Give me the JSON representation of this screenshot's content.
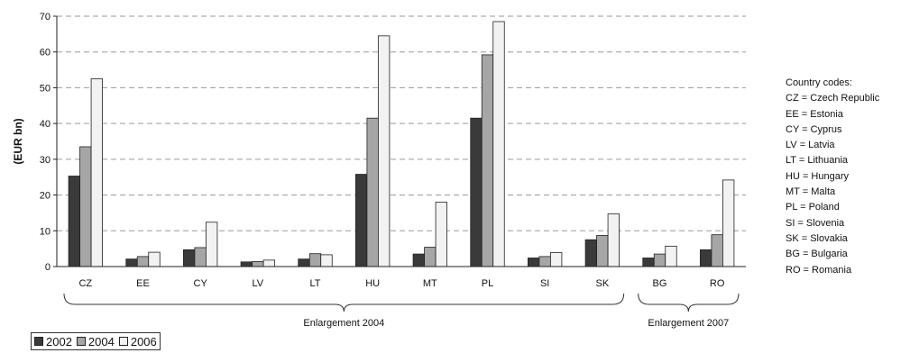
{
  "chart_data": {
    "type": "bar",
    "title": "",
    "ylabel": "(EUR bn)",
    "xlabel": "",
    "ylim": [
      0,
      70
    ],
    "yticks": [
      0,
      10,
      20,
      30,
      40,
      50,
      60,
      70
    ],
    "grid": "horizontal dashed",
    "categories": [
      "CZ",
      "EE",
      "CY",
      "LV",
      "LT",
      "HU",
      "MT",
      "PL",
      "SI",
      "SK",
      "BG",
      "RO"
    ],
    "series": [
      {
        "name": "2002",
        "color": "#3a3a3a",
        "values": [
          25.3,
          2.1,
          4.7,
          1.3,
          2.1,
          25.8,
          3.5,
          41.5,
          2.4,
          7.5,
          2.4,
          4.7
        ]
      },
      {
        "name": "2004",
        "color": "#a6a6a6",
        "values": [
          33.5,
          2.8,
          5.3,
          1.4,
          3.6,
          41.5,
          5.4,
          59.2,
          2.8,
          8.7,
          3.5,
          8.9
        ]
      },
      {
        "name": "2006",
        "color": "#f2f2f2",
        "values": [
          52.5,
          4.0,
          12.4,
          1.8,
          3.3,
          64.5,
          18.0,
          68.5,
          3.9,
          14.7,
          5.7,
          24.2
        ]
      }
    ],
    "groups": [
      {
        "label": "Enlargement 2004",
        "start": 0,
        "end": 9
      },
      {
        "label": "Enlargement 2007",
        "start": 10,
        "end": 11
      }
    ],
    "legend_position": "bottom-left"
  },
  "legend": {
    "items": [
      {
        "label": "2002",
        "color": "#3a3a3a"
      },
      {
        "label": "2004",
        "color": "#a6a6a6"
      },
      {
        "label": "2006",
        "color": "#f2f2f2"
      }
    ]
  },
  "country_codes": {
    "title": "Country codes:",
    "entries": [
      "CZ = Czech Republic",
      "EE = Estonia",
      "CY = Cyprus",
      "LV = Latvia",
      "LT = Lithuania",
      "HU = Hungary",
      "MT = Malta",
      "PL = Poland",
      "SI = Slovenia",
      "SK = Slovakia",
      "BG = Bulgaria",
      "RO = Romania"
    ]
  }
}
